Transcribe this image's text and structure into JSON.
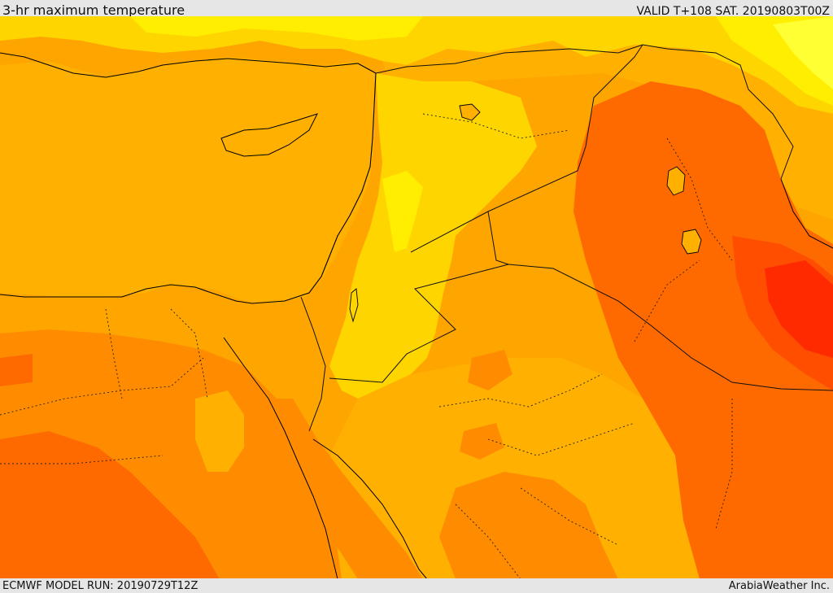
{
  "header": {
    "title": "3-hr maximum temperature",
    "valid": "VALID T+108 SAT. 20190803T00Z"
  },
  "footer": {
    "model_run": "ECMWF MODEL RUN: 20190729T12Z",
    "credit": "ArabiaWeather Inc."
  },
  "colors": {
    "band_30": "#ffb000",
    "band_32": "#ffd500",
    "band_28": "#ffee00",
    "band_26": "#ffff33",
    "band_34": "#ff8c00",
    "band_36": "#ff6a00",
    "band_38": "#ff4e00",
    "band_40": "#ff2a00",
    "sea": "#ffa500",
    "coast": "#000000",
    "border": "#111111"
  }
}
